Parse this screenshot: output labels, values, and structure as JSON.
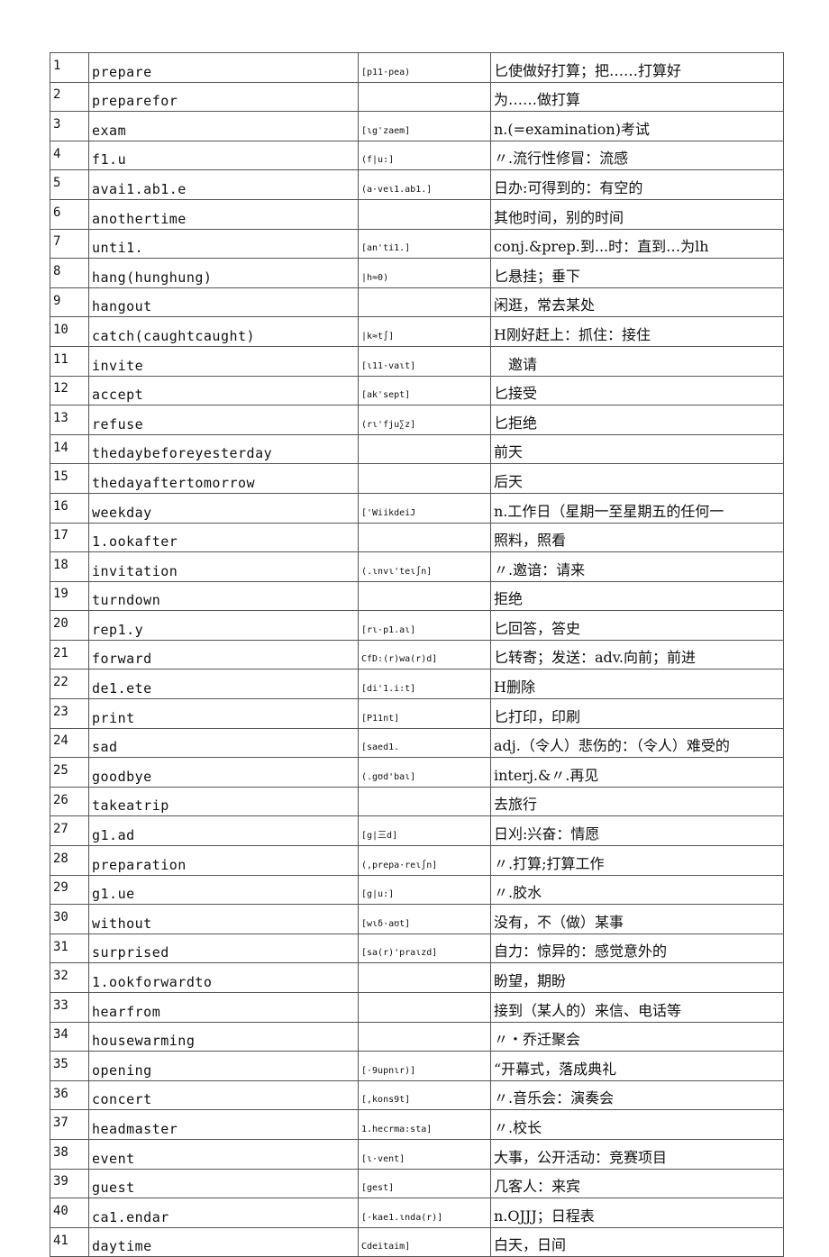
{
  "rows": [
    {
      "num": "1",
      "word": "prepare",
      "phonetic": "[p11·pea)",
      "meaning": "匕使做好打算；把……打算好"
    },
    {
      "num": "2",
      "word": "preparefor",
      "phonetic": "",
      "meaning": "为……做打算"
    },
    {
      "num": "3",
      "word": "exam",
      "phonetic": "[ɩg'zaem]",
      "meaning": "n.(=examination)考试"
    },
    {
      "num": "4",
      "word": "f1.u",
      "phonetic": "(f|u:]",
      "meaning": "〃.流行性修冒：流感"
    },
    {
      "num": "5",
      "word": "avai1.ab1.e",
      "phonetic": "(a·veɩ1.ab1.]",
      "meaning": "日办:可得到的：有空的"
    },
    {
      "num": "6",
      "word": "anothertime",
      "phonetic": "",
      "meaning": "其他时间，别的时间"
    },
    {
      "num": "7",
      "word": "unti1.",
      "phonetic": "[an'ti1.]",
      "meaning": "conj.&prep.到...时：直到…为lh"
    },
    {
      "num": "8",
      "word": "hang(hunghung)",
      "phonetic": "|h≈0)",
      "meaning": "匕悬挂；垂下"
    },
    {
      "num": "9",
      "word": "hangout",
      "phonetic": "",
      "meaning": "闲逛，常去某处"
    },
    {
      "num": "10",
      "word": "catch(caughtcaught)",
      "phonetic": "|k≈t∫]",
      "meaning": "H刚好赶上：抓住：接住"
    },
    {
      "num": "11",
      "word": "invite",
      "phonetic": "[ɩ11·vaɩt]",
      "meaning": "　邀请"
    },
    {
      "num": "12",
      "word": "accept",
      "phonetic": "[ak'sept]",
      "meaning": "匕接受"
    },
    {
      "num": "13",
      "word": "refuse",
      "phonetic": "(rɩ'fju∑z]",
      "meaning": "匕拒绝"
    },
    {
      "num": "14",
      "word": "thedaybeforeyesterday",
      "phonetic": "",
      "meaning": "前天"
    },
    {
      "num": "15",
      "word": "thedayaftertomorrow",
      "phonetic": "",
      "meaning": "后天"
    },
    {
      "num": "16",
      "word": "weekday",
      "phonetic": "['WiikdeiJ",
      "meaning": "n.工作日（星期一至星期五的任何一"
    },
    {
      "num": "17",
      "word": "1.ookafter",
      "phonetic": "",
      "meaning": "照料，照看"
    },
    {
      "num": "18",
      "word": "invitation",
      "phonetic": "(.ɩnvɩ'teɩ∫n]",
      "meaning": "〃.邀谙：请来"
    },
    {
      "num": "19",
      "word": "turndown",
      "phonetic": "",
      "meaning": "拒绝"
    },
    {
      "num": "20",
      "word": "rep1.y",
      "phonetic": "[rɩ·p1.aɩ]",
      "meaning": "匕回答，答史"
    },
    {
      "num": "21",
      "word": "forward",
      "phonetic": "CfD:(r)wa(r)d]",
      "meaning": "匕转寄；发送：adv.向前；前进"
    },
    {
      "num": "22",
      "word": "de1.ete",
      "phonetic": "[di'1.i:t]",
      "meaning": "H删除"
    },
    {
      "num": "23",
      "word": "print",
      "phonetic": "[P11nt]",
      "meaning": "匕打印，印刷"
    },
    {
      "num": "24",
      "word": "sad",
      "phonetic": "[saed1.",
      "meaning": "adj.（令人）悲伤的：（令人）难受的"
    },
    {
      "num": "25",
      "word": "goodbye",
      "phonetic": "(.gʊd'baɩ]",
      "meaning": "interj.&〃.再见"
    },
    {
      "num": "26",
      "word": "takeatrip",
      "phonetic": "",
      "meaning": "去旅行"
    },
    {
      "num": "27",
      "word": "g1.ad",
      "phonetic": "[g|三d]",
      "meaning": "日刈:兴奋：情愿"
    },
    {
      "num": "28",
      "word": "preparation",
      "phonetic": "(,prepa·reɩ∫n]",
      "meaning": "〃.打算;打算工作"
    },
    {
      "num": "29",
      "word": "g1.ue",
      "phonetic": "[g|u:]",
      "meaning": "〃.胶水"
    },
    {
      "num": "30",
      "word": "without",
      "phonetic": "[wɩδ·aʊt]",
      "meaning": "没有，不（做）某事"
    },
    {
      "num": "31",
      "word": "surprised",
      "phonetic": "[sa(r)'praɩzd]",
      "meaning": "自力：惊异的：感觉意外的"
    },
    {
      "num": "32",
      "word": "1.ookforwardto",
      "phonetic": "",
      "meaning": "盼望，期盼"
    },
    {
      "num": "33",
      "word": "hearfrom",
      "phonetic": "",
      "meaning": "接到（某人的）来信、电话等"
    },
    {
      "num": "34",
      "word": "housewarming",
      "phonetic": "",
      "meaning": "〃・乔迁聚会"
    },
    {
      "num": "35",
      "word": "opening",
      "phonetic": "[·9upnɩr)]",
      "meaning": "“开幕式，落成典礼"
    },
    {
      "num": "36",
      "word": "concert",
      "phonetic": "[,kons9t]",
      "meaning": "〃.音乐会：演奏会"
    },
    {
      "num": "37",
      "word": "headmaster",
      "phonetic": "1.hecrma:sta]",
      "meaning": "〃.校长"
    },
    {
      "num": "38",
      "word": "event",
      "phonetic": "[ɩ·vent]",
      "meaning": "大事，公开活动：竞赛项目"
    },
    {
      "num": "39",
      "word": "guest",
      "phonetic": "[gest]",
      "meaning": "几客人：来宾"
    },
    {
      "num": "40",
      "word": "ca1.endar",
      "phonetic": "[·kae1.ɩnda(r)]",
      "meaning": "n.OJJJ；日程表"
    },
    {
      "num": "41",
      "word": "daytime",
      "phonetic": "Cdeitaim]",
      "meaning": "白天，日间"
    }
  ]
}
